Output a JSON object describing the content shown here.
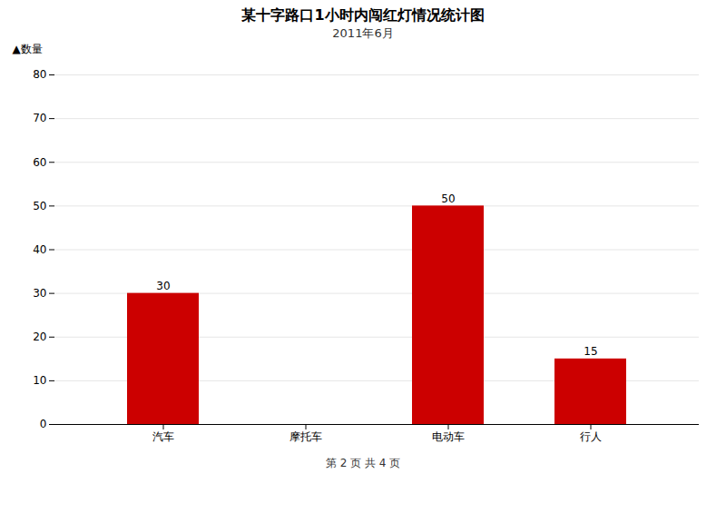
{
  "chart_data": {
    "type": "bar",
    "title": "某十字路口1小时内闯红灯情况统计图",
    "subtitle": "2011年6月",
    "categories": [
      "汽车",
      "摩托车",
      "电动车",
      "行人"
    ],
    "values": [
      30,
      0,
      50,
      15
    ],
    "value_labels": [
      "30",
      null,
      "50",
      "15"
    ],
    "data_labels": true,
    "color": "#cc0000",
    "ylabel": "▲数量",
    "ylim": [
      0,
      80
    ],
    "yticks": [
      0,
      10,
      20,
      30,
      40,
      50,
      60,
      70,
      80
    ],
    "grid": true,
    "annotations": [
      "第 2 页 共 4 页"
    ]
  }
}
